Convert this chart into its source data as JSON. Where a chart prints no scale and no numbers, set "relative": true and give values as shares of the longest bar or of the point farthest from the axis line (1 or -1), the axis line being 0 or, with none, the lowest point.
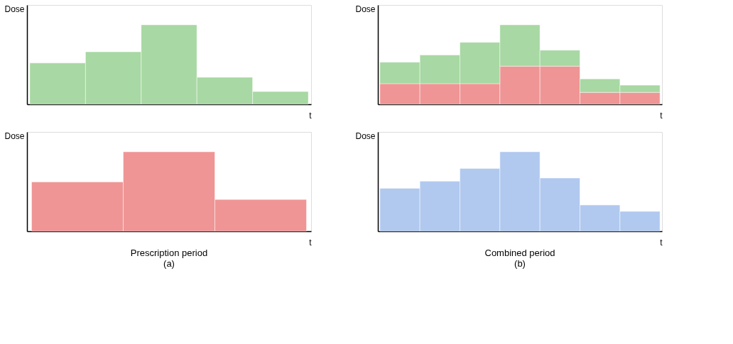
{
  "chart_data": [
    {
      "type": "bar",
      "relative": true,
      "ylabel": "Dose",
      "xlabel": "t",
      "categories": [
        null,
        null,
        null,
        null,
        null
      ],
      "series": [
        {
          "color": "#9fd49a",
          "values": [
            0.52,
            0.66,
            1,
            0.34,
            0.16
          ]
        }
      ]
    },
    {
      "type": "bar",
      "relative": true,
      "ylabel": "Dose",
      "xlabel": "t",
      "categories": [
        null,
        null,
        null
      ],
      "series": [
        {
          "color": "#ee8a8a",
          "values": [
            0.62,
            1,
            0.4
          ]
        }
      ],
      "annotations": [
        "Prescription period",
        "(a)"
      ]
    },
    {
      "type": "bar",
      "relative": true,
      "stacked": true,
      "ylabel": "Dose",
      "xlabel": "t",
      "categories": [
        null,
        null,
        null,
        null,
        null,
        null,
        null
      ],
      "series": [
        {
          "color": "#ee8a8a",
          "values": [
            0.26,
            0.26,
            0.26,
            0.48,
            0.48,
            0.15,
            0.15
          ]
        },
        {
          "color": "#9fd49a",
          "values": [
            0.27,
            0.36,
            0.52,
            0.52,
            0.2,
            0.17,
            0.09
          ]
        }
      ]
    },
    {
      "type": "bar",
      "relative": true,
      "ylabel": "Dose",
      "xlabel": "t",
      "categories": [
        null,
        null,
        null,
        null,
        null,
        null,
        null
      ],
      "series": [
        {
          "color": "#a9c4ee",
          "values": [
            0.54,
            0.63,
            0.79,
            1,
            0.67,
            0.33,
            0.25
          ]
        }
      ],
      "annotations": [
        "Combined period",
        "(b)"
      ]
    }
  ]
}
